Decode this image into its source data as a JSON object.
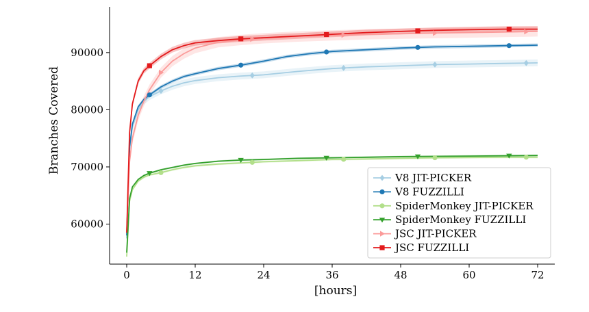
{
  "chart_data": {
    "type": "line",
    "xlabel": "[hours]",
    "ylabel": "Branches Covered",
    "xlim": [
      -3,
      75
    ],
    "ylim": [
      53000,
      98000
    ],
    "xticks": [
      0,
      12,
      24,
      36,
      48,
      60,
      72
    ],
    "yticks": [
      60000,
      70000,
      80000,
      90000
    ],
    "legend_position": "lower-right",
    "grid": false,
    "series": [
      {
        "name": "V8 JIT-PICKER",
        "color": "#a6cee3",
        "marker": "diamond",
        "band": 600,
        "points": [
          [
            0,
            57500
          ],
          [
            0.5,
            73000
          ],
          [
            1,
            77000
          ],
          [
            2,
            80000
          ],
          [
            3,
            81500
          ],
          [
            4,
            82300
          ],
          [
            6,
            83300
          ],
          [
            8,
            84100
          ],
          [
            10,
            84700
          ],
          [
            12,
            85100
          ],
          [
            16,
            85600
          ],
          [
            20,
            85900
          ],
          [
            24,
            86100
          ],
          [
            30,
            86700
          ],
          [
            36,
            87200
          ],
          [
            42,
            87500
          ],
          [
            48,
            87700
          ],
          [
            54,
            87900
          ],
          [
            60,
            88000
          ],
          [
            66,
            88100
          ],
          [
            72,
            88200
          ]
        ],
        "markers_x": [
          6,
          22,
          38,
          54,
          70
        ]
      },
      {
        "name": "V8 FUZZILLI",
        "color": "#1f78b4",
        "marker": "circle",
        "band": 300,
        "points": [
          [
            0,
            58000
          ],
          [
            0.5,
            73500
          ],
          [
            1,
            77500
          ],
          [
            2,
            80500
          ],
          [
            3,
            81800
          ],
          [
            4,
            82600
          ],
          [
            6,
            84000
          ],
          [
            8,
            85000
          ],
          [
            10,
            85800
          ],
          [
            12,
            86300
          ],
          [
            16,
            87200
          ],
          [
            20,
            87800
          ],
          [
            24,
            88500
          ],
          [
            28,
            89300
          ],
          [
            32,
            89800
          ],
          [
            36,
            90200
          ],
          [
            42,
            90500
          ],
          [
            48,
            90800
          ],
          [
            54,
            91000
          ],
          [
            60,
            91100
          ],
          [
            66,
            91200
          ],
          [
            72,
            91300
          ]
        ],
        "markers_x": [
          4,
          20,
          35,
          51,
          67
        ]
      },
      {
        "name": "SpiderMonkey JIT-PICKER",
        "color": "#b2df8a",
        "marker": "circle",
        "band": 200,
        "points": [
          [
            0,
            54300
          ],
          [
            0.5,
            64000
          ],
          [
            1,
            66000
          ],
          [
            2,
            67500
          ],
          [
            3,
            68200
          ],
          [
            4,
            68600
          ],
          [
            6,
            69000
          ],
          [
            8,
            69500
          ],
          [
            10,
            69900
          ],
          [
            12,
            70200
          ],
          [
            16,
            70500
          ],
          [
            20,
            70700
          ],
          [
            24,
            70900
          ],
          [
            30,
            71100
          ],
          [
            36,
            71300
          ],
          [
            42,
            71400
          ],
          [
            48,
            71500
          ],
          [
            54,
            71600
          ],
          [
            60,
            71650
          ],
          [
            66,
            71700
          ],
          [
            72,
            71700
          ]
        ],
        "markers_x": [
          6,
          22,
          38,
          54,
          70
        ]
      },
      {
        "name": "SpiderMonkey FUZZILLI",
        "color": "#33a02c",
        "marker": "triangle-down",
        "band": 150,
        "points": [
          [
            0,
            55000
          ],
          [
            0.5,
            64500
          ],
          [
            1,
            66500
          ],
          [
            2,
            67800
          ],
          [
            3,
            68500
          ],
          [
            4,
            68900
          ],
          [
            6,
            69500
          ],
          [
            8,
            69900
          ],
          [
            10,
            70300
          ],
          [
            12,
            70600
          ],
          [
            16,
            71000
          ],
          [
            20,
            71200
          ],
          [
            24,
            71300
          ],
          [
            30,
            71500
          ],
          [
            36,
            71600
          ],
          [
            42,
            71700
          ],
          [
            48,
            71800
          ],
          [
            54,
            71850
          ],
          [
            60,
            71900
          ],
          [
            66,
            71950
          ],
          [
            72,
            72000
          ]
        ],
        "markers_x": [
          4,
          20,
          35,
          51,
          67
        ]
      },
      {
        "name": "JSC JIT-PICKER",
        "color": "#fb9a99",
        "marker": "triangle-right",
        "band": 900,
        "points": [
          [
            0,
            58500
          ],
          [
            0.5,
            71000
          ],
          [
            1,
            75000
          ],
          [
            2,
            79000
          ],
          [
            3,
            81500
          ],
          [
            4,
            83500
          ],
          [
            6,
            86500
          ],
          [
            8,
            88500
          ],
          [
            10,
            89800
          ],
          [
            12,
            90800
          ],
          [
            16,
            91800
          ],
          [
            20,
            92200
          ],
          [
            24,
            92500
          ],
          [
            30,
            92800
          ],
          [
            36,
            93000
          ],
          [
            42,
            93200
          ],
          [
            48,
            93300
          ],
          [
            54,
            93400
          ],
          [
            60,
            93500
          ],
          [
            66,
            93600
          ],
          [
            72,
            93700
          ]
        ],
        "markers_x": [
          6,
          22,
          38,
          54,
          70
        ]
      },
      {
        "name": "JSC FUZZILLI",
        "color": "#e31a1c",
        "marker": "square",
        "band": 500,
        "points": [
          [
            0,
            58500
          ],
          [
            0.5,
            76000
          ],
          [
            1,
            81000
          ],
          [
            2,
            85000
          ],
          [
            3,
            86800
          ],
          [
            4,
            87700
          ],
          [
            6,
            89300
          ],
          [
            8,
            90500
          ],
          [
            10,
            91200
          ],
          [
            12,
            91700
          ],
          [
            16,
            92100
          ],
          [
            20,
            92400
          ],
          [
            24,
            92600
          ],
          [
            30,
            92900
          ],
          [
            36,
            93200
          ],
          [
            42,
            93500
          ],
          [
            48,
            93700
          ],
          [
            54,
            93900
          ],
          [
            60,
            94000
          ],
          [
            66,
            94100
          ],
          [
            72,
            94100
          ]
        ],
        "markers_x": [
          4,
          20,
          35,
          51,
          67
        ]
      }
    ]
  }
}
